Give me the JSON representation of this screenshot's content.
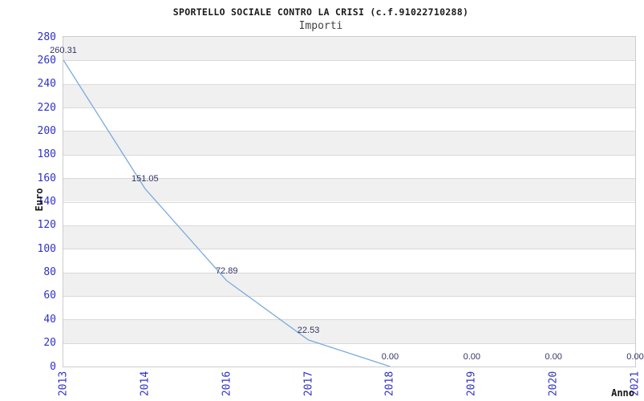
{
  "title": "SPORTELLO SOCIALE CONTRO LA CRISI (c.f.91022710288)",
  "subtitle": "Importi",
  "chart_data": {
    "type": "line",
    "categories": [
      "2013",
      "2014",
      "2016",
      "2017",
      "2018",
      "2019",
      "2020",
      "2021"
    ],
    "values": [
      260.31,
      151.05,
      72.89,
      22.53,
      0,
      0,
      0,
      0
    ],
    "value_labels": [
      "260.31",
      "151.05",
      "72.89",
      "22.53",
      "0.00",
      "0.00",
      "0.00",
      "0.00"
    ],
    "xlabel": "Anno",
    "ylabel": "Euro",
    "ylim": [
      0,
      280
    ],
    "ytick_step": 20,
    "legend": "none",
    "grid": "horizontal gridlines with alternating shaded bands",
    "colors": {
      "line": "#7aabdc",
      "tick_labels": "#3030cc",
      "value_labels": "#333366",
      "band": "#f0f0f0",
      "gridline": "#d9d9d9",
      "plot_border": "#cccccc",
      "title_text": "#1a1a1a",
      "subtitle_text": "#444444"
    }
  }
}
